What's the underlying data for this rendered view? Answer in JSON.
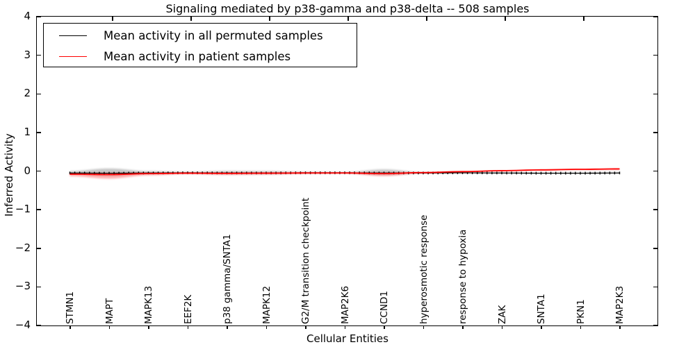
{
  "figure": {
    "title": "Signaling mediated by p38-gamma and p38-delta -- 508 samples",
    "xlabel": "Cellular Entities",
    "ylabel": "Inferred Activity"
  },
  "legend": {
    "entries": [
      {
        "label": "Mean activity in all permuted samples",
        "color": "#000000"
      },
      {
        "label": "Mean activity in patient samples",
        "color": "#ff0000"
      }
    ]
  },
  "chart_data": {
    "type": "line",
    "title": "Signaling mediated by p38-gamma and p38-delta -- 508 samples",
    "xlabel": "Cellular Entities",
    "ylabel": "Inferred Activity",
    "ylim": [
      -4,
      4
    ],
    "yticks": [
      4,
      3,
      2,
      1,
      0,
      -1,
      -2,
      -3,
      -4
    ],
    "grid": false,
    "legend_position": "upper left",
    "categories": [
      "STMN1",
      "MAPT",
      "MAPK13",
      "EEF2K",
      "p38 gamma/SNTA1",
      "MAPK12",
      "G2/M transition checkpoint",
      "MAP2K6",
      "CCND1",
      "hyperosmotic response",
      "response to hypoxia",
      "ZAK",
      "SNTA1",
      "PKN1",
      "MAP2K3"
    ],
    "top_tick_category_indices": [
      1,
      3,
      5,
      7,
      9,
      11,
      13
    ],
    "series": [
      {
        "name": "Mean activity in all permuted samples",
        "color": "#000000",
        "marker": "|",
        "values": [
          -0.05,
          -0.055,
          -0.05,
          -0.045,
          -0.05,
          -0.05,
          -0.045,
          -0.045,
          -0.05,
          -0.05,
          -0.045,
          -0.05,
          -0.055,
          -0.055,
          -0.05
        ],
        "spread": [
          0.05,
          0.13,
          0.05,
          0.025,
          0.055,
          0.05,
          0.025,
          0.02,
          0.1,
          0.02,
          0.015,
          0.015,
          0.02,
          0.02,
          0.02
        ],
        "shade_color": "#000000",
        "shade_opacity": 0.22
      },
      {
        "name": "Mean activity in patient samples",
        "color": "#ff0000",
        "marker": "",
        "values": [
          -0.08,
          -0.09,
          -0.065,
          -0.055,
          -0.06,
          -0.055,
          -0.05,
          -0.05,
          -0.065,
          -0.04,
          -0.015,
          0.01,
          0.03,
          0.045,
          0.055
        ],
        "spread": [
          0.06,
          0.12,
          0.05,
          0.02,
          0.04,
          0.035,
          0.02,
          0.015,
          0.07,
          0.015,
          0.01,
          0.01,
          0.015,
          0.02,
          0.025
        ],
        "shade_color": "#ff0000",
        "shade_opacity": 0.3
      }
    ]
  }
}
